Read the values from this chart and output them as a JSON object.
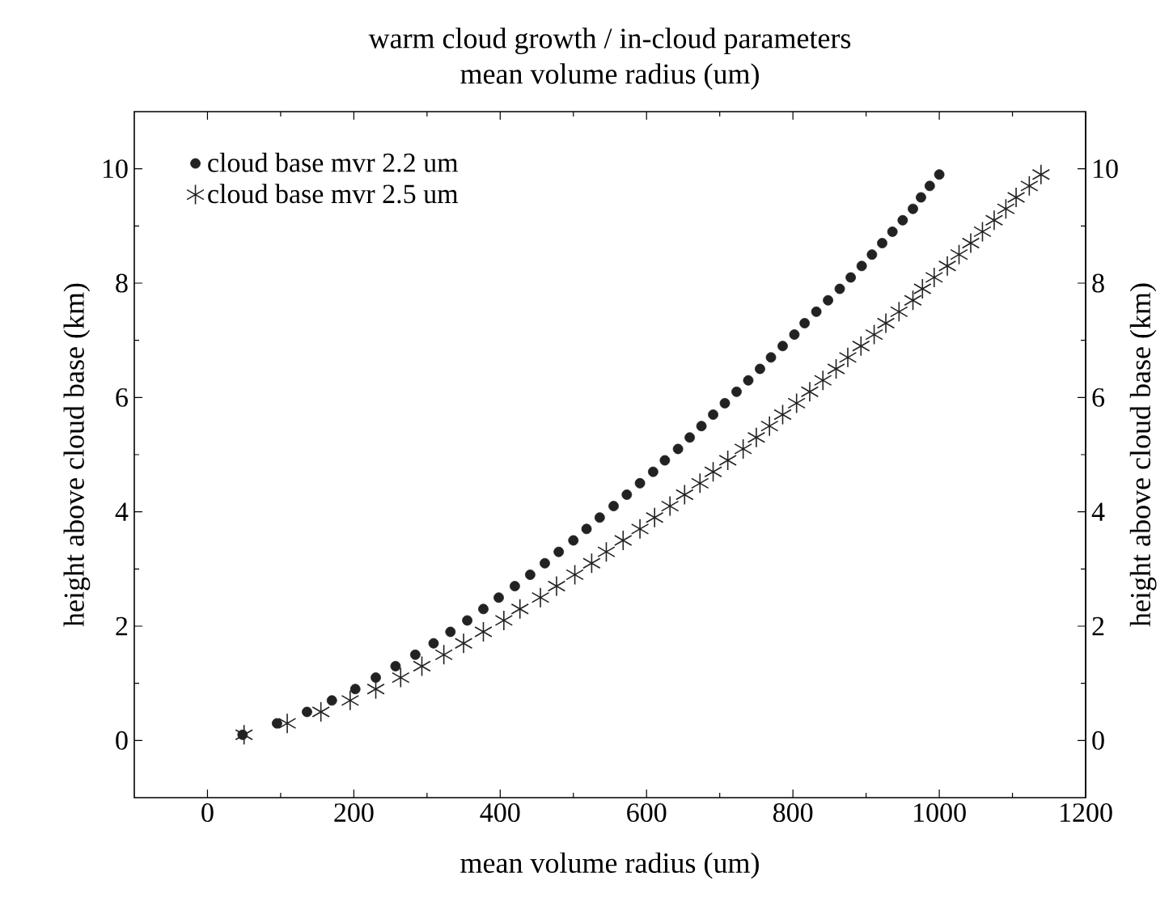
{
  "chart_data": {
    "type": "scatter",
    "title": "warm cloud growth / in-cloud parameters",
    "subtitle": "mean volume radius (um)",
    "xlabel": "mean volume radius (um)",
    "ylabel": "height above cloud base (km)",
    "y2label": "height above cloud base (km)",
    "xlim": [
      -100,
      1200
    ],
    "xticks": [
      0,
      200,
      400,
      600,
      800,
      1000,
      1200
    ],
    "ylim": [
      -1,
      11
    ],
    "yticks": [
      0,
      2,
      4,
      6,
      8,
      10
    ],
    "y2lim": [
      -1,
      11
    ],
    "y2ticks": [
      0,
      2,
      4,
      6,
      8,
      10
    ],
    "legend": "top left",
    "grid": false,
    "series": [
      {
        "name": "cloud base mvr 2.2 um",
        "color": "#222222",
        "marker": "circle",
        "x": [
          48,
          95,
          136,
          170,
          202,
          230,
          257,
          284,
          309,
          332,
          355,
          377,
          398,
          420,
          441,
          461,
          480,
          500,
          518,
          536,
          555,
          573,
          591,
          609,
          625,
          643,
          659,
          675,
          691,
          707,
          723,
          739,
          755,
          770,
          786,
          802,
          816,
          832,
          848,
          864,
          879,
          894,
          908,
          922,
          936,
          950,
          964,
          975,
          987,
          1000
        ],
        "values": [
          0.1,
          0.3,
          0.5,
          0.7,
          0.9,
          1.1,
          1.3,
          1.5,
          1.7,
          1.9,
          2.1,
          2.3,
          2.5,
          2.7,
          2.9,
          3.1,
          3.3,
          3.5,
          3.7,
          3.9,
          4.1,
          4.3,
          4.5,
          4.7,
          4.9,
          5.1,
          5.3,
          5.5,
          5.7,
          5.9,
          6.1,
          6.3,
          6.5,
          6.7,
          6.9,
          7.1,
          7.3,
          7.5,
          7.7,
          7.9,
          8.1,
          8.3,
          8.5,
          8.7,
          8.9,
          9.1,
          9.3,
          9.5,
          9.7,
          9.9
        ]
      },
      {
        "name": "cloud base mvr 2.5 um",
        "color": "#222222",
        "marker": "cross",
        "x": [
          50,
          109,
          155,
          195,
          230,
          264,
          293,
          323,
          350,
          377,
          405,
          427,
          455,
          477,
          502,
          525,
          545,
          568,
          591,
          611,
          632,
          652,
          673,
          691,
          711,
          732,
          750,
          768,
          786,
          805,
          823,
          841,
          859,
          875,
          893,
          911,
          927,
          945,
          964,
          977,
          993,
          1011,
          1027,
          1043,
          1059,
          1075,
          1091,
          1105,
          1123,
          1139
        ],
        "values": [
          0.1,
          0.3,
          0.5,
          0.7,
          0.9,
          1.1,
          1.3,
          1.5,
          1.7,
          1.9,
          2.1,
          2.3,
          2.5,
          2.7,
          2.9,
          3.1,
          3.3,
          3.5,
          3.7,
          3.9,
          4.1,
          4.3,
          4.5,
          4.7,
          4.9,
          5.1,
          5.3,
          5.5,
          5.7,
          5.9,
          6.1,
          6.3,
          6.5,
          6.7,
          6.9,
          7.1,
          7.3,
          7.5,
          7.7,
          7.9,
          8.1,
          8.3,
          8.5,
          8.7,
          8.9,
          9.1,
          9.3,
          9.5,
          9.7,
          9.9
        ]
      }
    ]
  }
}
